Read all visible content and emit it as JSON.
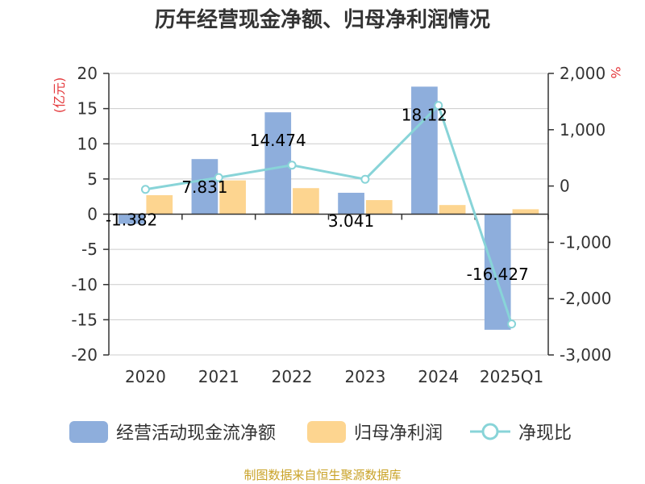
{
  "chart_data": {
    "type": "bar",
    "title": "历年经营现金净额、归母净利润情况",
    "categories": [
      "2020",
      "2021",
      "2022",
      "2023",
      "2024",
      "2025Q1"
    ],
    "y_left": {
      "label": "(亿元)",
      "range": [
        -20,
        20
      ],
      "ticks": [
        "20",
        "15",
        "10",
        "5",
        "0",
        "-5",
        "-10",
        "-15",
        "-20"
      ]
    },
    "y_right": {
      "label": "%",
      "range": [
        -3000,
        2000
      ],
      "ticks": [
        "2,000",
        "1,000",
        "0",
        "-1,000",
        "-2,000",
        "-3,000"
      ]
    },
    "series": [
      {
        "name": "经营活动现金流净额",
        "type": "bar",
        "axis": "left",
        "color": "#8eaedc",
        "values": [
          -1.382,
          7.831,
          14.474,
          3.041,
          18.12,
          -16.427
        ],
        "labels": [
          "-1.382",
          "7.831",
          "14.474",
          "3.041",
          "18.12",
          "-16.427"
        ]
      },
      {
        "name": "归母净利润",
        "type": "bar",
        "axis": "left",
        "color": "#fdd590",
        "values": [
          2.7,
          4.8,
          3.7,
          2.0,
          1.3,
          0.7
        ]
      },
      {
        "name": "净现比",
        "type": "line",
        "axis": "right",
        "color": "#88d4d8",
        "values": [
          -60,
          150,
          370,
          120,
          1430,
          -2450
        ]
      }
    ],
    "grid": true,
    "legend_position": "bottom"
  },
  "source": "制图数据来自恒生聚源数据库"
}
